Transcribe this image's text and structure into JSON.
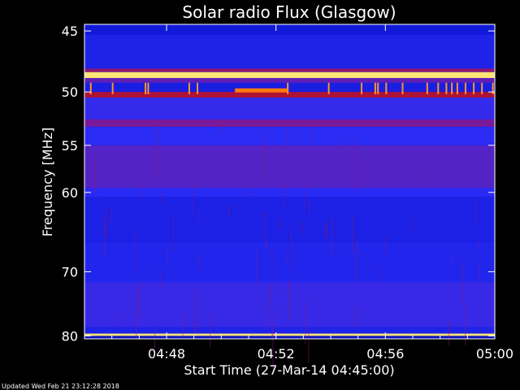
{
  "chart_data": {
    "type": "heatmap",
    "title": "Solar radio Flux (Glasgow)",
    "xlabel": "Start Time (27-Mar-14 04:45:00)",
    "ylabel": "Frequency [MHz]",
    "x_range_minutes_after_start": [
      0,
      15
    ],
    "y_range_mhz": [
      44.5,
      80.5
    ],
    "x_ticks": [
      {
        "minute": 3,
        "label": "04:48"
      },
      {
        "minute": 7,
        "label": "04:52"
      },
      {
        "minute": 11,
        "label": "04:56"
      },
      {
        "minute": 15,
        "label": "05:00"
      }
    ],
    "y_ticks": [
      {
        "mhz": 45,
        "label": "45"
      },
      {
        "mhz": 50,
        "label": "50"
      },
      {
        "mhz": 55,
        "label": "55"
      },
      {
        "mhz": 60,
        "label": "60"
      },
      {
        "mhz": 70,
        "label": "70"
      },
      {
        "mhz": 80,
        "label": "80"
      }
    ],
    "colormap": [
      "#000070",
      "#1018d8",
      "#2b2cf5",
      "#7a1a9a",
      "#c01010",
      "#ff6a00",
      "#ffff90"
    ],
    "bands": [
      {
        "mhz_from": 44.5,
        "mhz_to": 45.3,
        "level": 0.18
      },
      {
        "mhz_from": 45.3,
        "mhz_to": 48.0,
        "level": 0.26
      },
      {
        "mhz_from": 48.0,
        "mhz_to": 48.3,
        "level": 0.55
      },
      {
        "mhz_from": 48.3,
        "mhz_to": 48.8,
        "level": 0.97
      },
      {
        "mhz_from": 48.8,
        "mhz_to": 49.2,
        "level": 0.45
      },
      {
        "mhz_from": 49.2,
        "mhz_to": 50.0,
        "level": 0.22
      },
      {
        "mhz_from": 50.0,
        "mhz_to": 50.5,
        "level": 0.62
      },
      {
        "mhz_from": 50.5,
        "mhz_to": 52.5,
        "level": 0.35
      },
      {
        "mhz_from": 52.5,
        "mhz_to": 53.2,
        "level": 0.5
      },
      {
        "mhz_from": 53.2,
        "mhz_to": 55.0,
        "level": 0.33
      },
      {
        "mhz_from": 55.0,
        "mhz_to": 59.5,
        "level": 0.42
      },
      {
        "mhz_from": 59.5,
        "mhz_to": 60.5,
        "level": 0.32
      },
      {
        "mhz_from": 60.5,
        "mhz_to": 66.0,
        "level": 0.24
      },
      {
        "mhz_from": 66.0,
        "mhz_to": 71.5,
        "level": 0.28
      },
      {
        "mhz_from": 71.5,
        "mhz_to": 78.5,
        "level": 0.36
      },
      {
        "mhz_from": 78.5,
        "mhz_to": 79.6,
        "level": 0.26
      },
      {
        "mhz_from": 79.6,
        "mhz_to": 80.0,
        "level": 0.97
      },
      {
        "mhz_from": 80.0,
        "mhz_to": 80.5,
        "level": 0.12
      }
    ],
    "bursts": [
      {
        "minute_from": 5.5,
        "minute_to": 7.4,
        "mhz": 49.9,
        "level": 0.85
      }
    ],
    "spikes_minutes": [
      0.2,
      1.0,
      2.2,
      2.3,
      3.8,
      4.1,
      7.4,
      8.9,
      10.1,
      10.6,
      10.7,
      11.0,
      11.6,
      12.5,
      12.9,
      13.2,
      13.4,
      13.6,
      13.9,
      14.2,
      14.5,
      14.9
    ]
  },
  "footer": {
    "updated": "Updated Wed Feb 21 23:12:28 2018"
  }
}
